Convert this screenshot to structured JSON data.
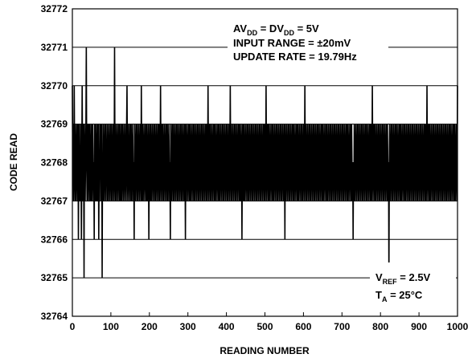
{
  "chart_data": {
    "type": "line",
    "xlabel": "READING NUMBER",
    "ylabel": "CODE READ",
    "xlim": [
      0,
      1000
    ],
    "ylim": [
      32764,
      32772
    ],
    "xticks": [
      0,
      100,
      200,
      300,
      400,
      500,
      600,
      700,
      800,
      900,
      1000
    ],
    "yticks": [
      32764,
      32765,
      32766,
      32767,
      32768,
      32769,
      32770,
      32771,
      32772
    ],
    "xtick_labels": [
      "0",
      "100",
      "200",
      "300",
      "400",
      "500",
      "600",
      "700",
      "800",
      "900",
      "1000"
    ],
    "ytick_labels": [
      "32764",
      "32765",
      "32766",
      "32767",
      "32768",
      "32769",
      "32770",
      "32771",
      "32772"
    ],
    "grid": true,
    "line_color": "#000000",
    "annotations": {
      "top": {
        "line1": {
          "pre": "AV",
          "sub1": "DD",
          "mid": " = DV",
          "sub2": "DD",
          "post": " = 5V"
        },
        "line2": "INPUT RANGE = ±20mV",
        "line3": "UPDATE RATE = 19.79Hz"
      },
      "bottom": {
        "line1": {
          "pre": "V",
          "sub": "REF",
          "post": " = 2.5V"
        },
        "line2": {
          "pre": "T",
          "sub": "A",
          "post": " = 25°C"
        }
      }
    },
    "series": [
      {
        "values": [
          32770,
          32768,
          32769,
          32767,
          32768,
          32770,
          32768,
          32767,
          32769,
          32768,
          32767,
          32768,
          32769,
          32768,
          32767,
          32769,
          32766,
          32768,
          32769,
          32767,
          32768,
          32767,
          32769,
          32768,
          32766,
          32768,
          32770,
          32768,
          32767,
          32769,
          32768,
          32765,
          32769,
          32768,
          32767,
          32768,
          32769,
          32771,
          32768,
          32767,
          32768,
          32769,
          32767,
          32768,
          32769,
          32768,
          32767,
          32769,
          32768,
          32767,
          32768,
          32769,
          32767,
          32768,
          32769,
          32768,
          32767,
          32768,
          32766,
          32769,
          32768,
          32767,
          32769,
          32768,
          32767,
          32768,
          32769,
          32767,
          32768,
          32769,
          32766,
          32768,
          32767,
          32769,
          32768,
          32769,
          32767,
          32768,
          32769,
          32765,
          32768,
          32767,
          32769,
          32768,
          32767,
          32768,
          32769,
          32768,
          32767,
          32769,
          32768,
          32768,
          32767,
          32769,
          32768,
          32767,
          32768,
          32769,
          32768,
          32767,
          32768,
          32769,
          32768,
          32767,
          32769,
          32768,
          32767,
          32768,
          32769,
          32768,
          32767,
          32768,
          32771,
          32768,
          32767,
          32769,
          32768,
          32767,
          32768,
          32769,
          32768,
          32767,
          32768,
          32769,
          32768,
          32767,
          32769,
          32768,
          32767,
          32768,
          32769,
          32767,
          32768,
          32769,
          32768,
          32767,
          32768,
          32769,
          32768,
          32767,
          32768,
          32769,
          32768,
          32767,
          32769,
          32770,
          32768,
          32767,
          32768,
          32769,
          32768,
          32767,
          32768,
          32769,
          32768,
          32767,
          32769,
          32768,
          32767,
          32768,
          32769,
          32768,
          32767,
          32768,
          32766,
          32769,
          32768,
          32767,
          32768,
          32769,
          32768,
          32767,
          32769,
          32768,
          32767,
          32768,
          32769,
          32768,
          32767,
          32768,
          32769,
          32768,
          32767,
          32770,
          32768,
          32767,
          32769,
          32768,
          32767,
          32768,
          32769,
          32768,
          32767,
          32768,
          32769,
          32768,
          32767,
          32769,
          32768,
          32767,
          32768,
          32769,
          32768,
          32766,
          32768,
          32769,
          32768,
          32767,
          32769,
          32768,
          32767,
          32768,
          32769,
          32768,
          32767,
          32768,
          32769,
          32768,
          32767,
          32769,
          32768,
          32767,
          32768,
          32769,
          32768,
          32767,
          32768,
          32769,
          32768,
          32767,
          32769,
          32768,
          32767,
          32768,
          32770,
          32768,
          32767,
          32768,
          32769,
          32768,
          32767,
          32769,
          32768,
          32767,
          32768,
          32769,
          32768,
          32767,
          32768,
          32769,
          32768,
          32767,
          32769,
          32768,
          32767,
          32768,
          32769,
          32768,
          32767,
          32768,
          32766,
          32769,
          32768,
          32767,
          32768,
          32769,
          32768,
          32767,
          32769,
          32768,
          32767,
          32768,
          32769,
          32768,
          32767,
          32768,
          32769,
          32768,
          32767,
          32769,
          32768,
          32767,
          32768,
          32769,
          32768,
          32767,
          32768,
          32769,
          32768,
          32767,
          32769,
          32768,
          32767,
          32768,
          32769,
          32768,
          32767,
          32768,
          32769,
          32768,
          32766,
          32769,
          32768,
          32767,
          32768,
          32769,
          32768,
          32767,
          32768,
          32769,
          32768,
          32767,
          32769,
          32768,
          32767,
          32768,
          32769,
          32768,
          32767,
          32768,
          32769,
          32768,
          32767,
          32769,
          32768,
          32767,
          32768,
          32769,
          32768,
          32767,
          32768,
          32769,
          32768,
          32767,
          32769,
          32768,
          32767,
          32768,
          32769,
          32768,
          32767,
          32768,
          32769,
          32768,
          32767,
          32769,
          32768,
          32767,
          32768,
          32769,
          32768,
          32767,
          32768,
          32769,
          32768,
          32767,
          32769,
          32768,
          32767,
          32768,
          32770,
          32768,
          32767,
          32768,
          32769,
          32768,
          32767,
          32769,
          32768,
          32767,
          32768,
          32769,
          32768,
          32767,
          32768,
          32769,
          32768,
          32767,
          32769,
          32768,
          32767,
          32768,
          32769,
          32768,
          32767,
          32768,
          32769,
          32768,
          32767,
          32769,
          32768,
          32767,
          32768,
          32769,
          32768,
          32767,
          32768,
          32769,
          32768,
          32767,
          32769,
          32768,
          32767,
          32768,
          32769,
          32768,
          32767,
          32768,
          32769,
          32768,
          32767,
          32769,
          32768,
          32767,
          32768,
          32769,
          32768,
          32767,
          32768,
          32770,
          32768,
          32767,
          32769,
          32768,
          32767,
          32768,
          32769,
          32768,
          32767,
          32768,
          32769,
          32768,
          32767,
          32769,
          32768,
          32767,
          32768,
          32769,
          32768,
          32767,
          32768,
          32769,
          32768,
          32767,
          32769,
          32768,
          32767,
          32768,
          32769,
          32768,
          32766,
          32768,
          32769,
          32768,
          32767,
          32769,
          32768,
          32767,
          32768,
          32769,
          32768,
          32767,
          32768,
          32769,
          32768,
          32767,
          32769,
          32768,
          32767,
          32768,
          32769,
          32768,
          32767,
          32768,
          32769,
          32768,
          32767,
          32769,
          32768,
          32767,
          32768,
          32769,
          32768,
          32767,
          32768,
          32769,
          32768,
          32767,
          32769,
          32768,
          32767,
          32768,
          32769,
          32768,
          32767,
          32768,
          32769,
          32768,
          32767,
          32769,
          32768,
          32767,
          32768,
          32769,
          32768,
          32767,
          32768,
          32769,
          32768,
          32767,
          32769,
          32768,
          32767,
          32768,
          32770,
          32768,
          32767,
          32768,
          32769,
          32768,
          32767,
          32769,
          32768,
          32767,
          32768,
          32769,
          32768,
          32767,
          32768,
          32769,
          32768,
          32767,
          32769,
          32768,
          32767,
          32768,
          32769,
          32768,
          32767,
          32768,
          32769,
          32768,
          32767,
          32769,
          32768,
          32767,
          32768,
          32769,
          32768,
          32767,
          32768,
          32769,
          32768,
          32767,
          32769,
          32768,
          32767,
          32768,
          32769,
          32768,
          32767,
          32768,
          32769,
          32768,
          32766,
          32769,
          32768,
          32767,
          32768,
          32769,
          32768,
          32767,
          32768,
          32769,
          32768,
          32767,
          32769,
          32768,
          32767,
          32768,
          32769,
          32768,
          32767,
          32768,
          32769,
          32768,
          32767,
          32769,
          32768,
          32767,
          32768,
          32769,
          32768,
          32767,
          32768,
          32769,
          32768,
          32767,
          32769,
          32768,
          32767,
          32768,
          32769,
          32768,
          32767,
          32768,
          32769,
          32768,
          32767,
          32769,
          32768,
          32767,
          32768,
          32769,
          32768,
          32767,
          32768,
          32770,
          32768,
          32767,
          32769,
          32768,
          32767,
          32768,
          32769,
          32768,
          32767,
          32768,
          32769,
          32768,
          32767,
          32769,
          32768,
          32767,
          32768,
          32769,
          32768,
          32767,
          32768,
          32769,
          32768,
          32767,
          32769,
          32768,
          32767,
          32768,
          32769,
          32768,
          32767,
          32768,
          32769,
          32768,
          32767,
          32769,
          32768,
          32767,
          32768,
          32769,
          32768,
          32767,
          32768,
          32769,
          32768,
          32767,
          32769,
          32768,
          32767,
          32768,
          32769,
          32768,
          32767,
          32768,
          32769,
          32768,
          32767,
          32769,
          32768,
          32767,
          32768,
          32769,
          32768,
          32767,
          32768,
          32769,
          32768,
          32767,
          32769,
          32768,
          32767,
          32768,
          32769,
          32768,
          32767,
          32768,
          32769,
          32768,
          32767,
          32769,
          32768,
          32767,
          32768,
          32769,
          32768,
          32767,
          32768,
          32769,
          32768,
          32767,
          32769,
          32768,
          32767,
          32768,
          32769,
          32768,
          32767,
          32768,
          32769,
          32768,
          32767,
          32769,
          32768,
          32767,
          32768,
          32769,
          32768,
          32767,
          32768,
          32769,
          32768,
          32767,
          32769,
          32768,
          32767,
          32768,
          32769,
          32768,
          32767,
          32768,
          32769,
          32768,
          32767,
          32769,
          32768,
          32767,
          32768,
          32766,
          32768,
          32767,
          32769,
          32768,
          32767,
          32768,
          32769,
          32768,
          32767,
          32768,
          32769,
          32768,
          32767,
          32769,
          32768,
          32767,
          32768,
          32769,
          32768,
          32767,
          32768,
          32769,
          32768,
          32767,
          32769,
          32768,
          32767,
          32768,
          32769,
          32768,
          32767,
          32768,
          32769,
          32768,
          32767,
          32769,
          32768,
          32767,
          32768,
          32769,
          32768,
          32767,
          32768,
          32769,
          32768,
          32767,
          32769,
          32768,
          32767,
          32768,
          32770,
          32768,
          32767,
          32768,
          32769,
          32768,
          32767,
          32769,
          32768,
          32767,
          32768,
          32769,
          32768,
          32767,
          32768,
          32769,
          32768,
          32767,
          32769,
          32768,
          32767,
          32768,
          32769,
          32768,
          32767,
          32768,
          32769,
          32768,
          32767,
          32769,
          32768,
          32767,
          32768,
          32769,
          32768,
          32767,
          32768,
          32769,
          32768,
          32767,
          32769,
          32768,
          32767,
          32768,
          32765,
          32768,
          32769,
          32768,
          32767,
          32768,
          32769,
          32768,
          32767,
          32769,
          32768,
          32767,
          32768,
          32769,
          32768,
          32767,
          32768,
          32769,
          32768,
          32767,
          32769,
          32768,
          32767,
          32768,
          32769,
          32768,
          32767,
          32768,
          32769,
          32768,
          32767,
          32769,
          32768,
          32767,
          32768,
          32769,
          32768,
          32767,
          32768,
          32769,
          32768,
          32767,
          32769,
          32768,
          32767,
          32768,
          32769,
          32768,
          32767,
          32768,
          32769,
          32768,
          32767,
          32769,
          32768,
          32767,
          32768,
          32769,
          32768,
          32767,
          32768,
          32769,
          32768,
          32767,
          32769,
          32768,
          32767,
          32768,
          32769,
          32768,
          32767,
          32768,
          32769,
          32768,
          32767,
          32769,
          32768,
          32767,
          32768,
          32769,
          32768,
          32767,
          32768,
          32769,
          32768,
          32767,
          32769,
          32768,
          32767,
          32768,
          32769,
          32768,
          32767,
          32768,
          32769,
          32768,
          32767,
          32769,
          32768,
          32767,
          32768,
          32770,
          32768,
          32767,
          32768,
          32769,
          32768,
          32767,
          32769,
          32768,
          32767,
          32768,
          32769,
          32768,
          32767,
          32768,
          32769,
          32768,
          32767,
          32769,
          32768,
          32767,
          32768,
          32769,
          32768,
          32767,
          32768,
          32769,
          32768,
          32767,
          32769,
          32768,
          32767,
          32768,
          32769,
          32768,
          32767,
          32768,
          32769,
          32768,
          32767,
          32769,
          32768,
          32767,
          32768,
          32769,
          32768,
          32767,
          32768,
          32769,
          32768,
          32767,
          32769,
          32768,
          32767,
          32768,
          32769,
          32768,
          32767,
          32768,
          32769,
          32768,
          32767,
          32769,
          32768,
          32767,
          32768,
          32769,
          32768,
          32767,
          32768,
          32769,
          32768,
          32767,
          32769,
          32768,
          32767,
          32768,
          32769,
          32768,
          32767,
          32768,
          32770
        ]
      }
    ]
  }
}
